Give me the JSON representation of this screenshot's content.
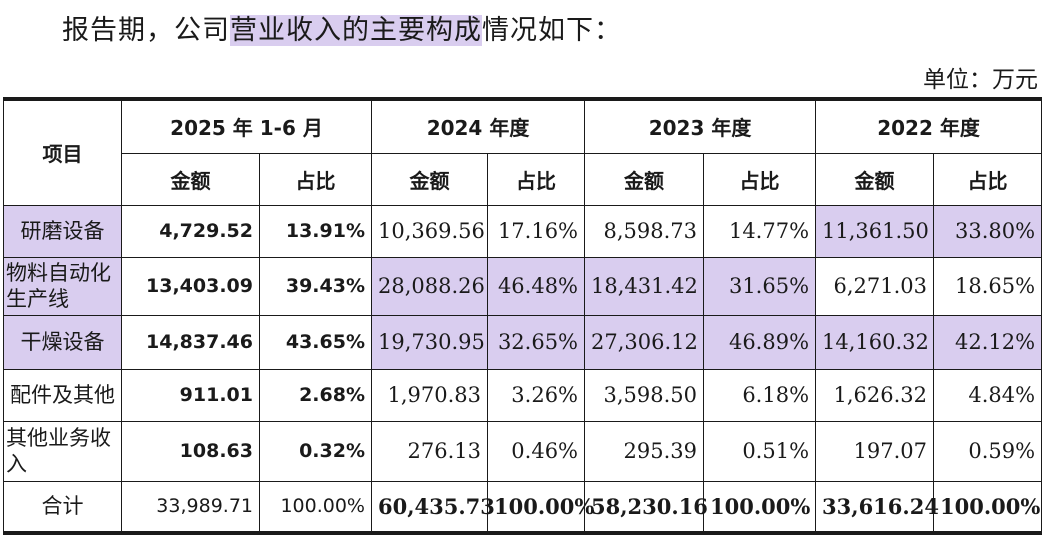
{
  "intro": {
    "prefix": "报告期，公司",
    "highlight1": "营业收入的主要构成",
    "suffix": "情况如下："
  },
  "unit_label": "单位：万元",
  "table": {
    "item_header": "项目",
    "periods": [
      "2025 年 1-6 月",
      "2024 年度",
      "2023 年度",
      "2022 年度"
    ],
    "sub_headers": [
      "金额",
      "占比"
    ],
    "rows": [
      {
        "name": "研磨设备",
        "values": [
          "4,729.52",
          "13.91%",
          "10,369.56",
          "17.16%",
          "8,598.73",
          "14.77%",
          "11,361.50",
          "33.80%"
        ]
      },
      {
        "name": "物料自动化生产线",
        "values": [
          "13,403.09",
          "39.43%",
          "28,088.26",
          "46.48%",
          "18,431.42",
          "31.65%",
          "6,271.03",
          "18.65%"
        ]
      },
      {
        "name": "干燥设备",
        "values": [
          "14,837.46",
          "43.65%",
          "19,730.95",
          "32.65%",
          "27,306.12",
          "46.89%",
          "14,160.32",
          "42.12%"
        ]
      },
      {
        "name": "配件及其他",
        "values": [
          "911.01",
          "2.68%",
          "1,970.83",
          "3.26%",
          "3,598.50",
          "6.18%",
          "1,626.32",
          "4.84%"
        ]
      },
      {
        "name": "其他业务收入",
        "values": [
          "108.63",
          "0.32%",
          "276.13",
          "0.46%",
          "295.39",
          "0.51%",
          "197.07",
          "0.59%"
        ]
      },
      {
        "name": "合计",
        "values": [
          "33,989.71",
          "100.00%",
          "60,435.73",
          "100.00%",
          "58,230.16",
          "100.00%",
          "33,616.24",
          "100.00%"
        ]
      }
    ]
  },
  "colors": {
    "highlight": "#d9cdef",
    "text": "#1a1a1a"
  }
}
